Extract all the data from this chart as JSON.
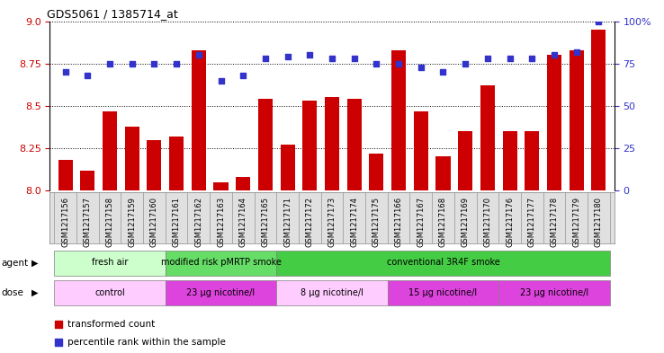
{
  "title": "GDS5061 / 1385714_at",
  "samples": [
    "GSM1217156",
    "GSM1217157",
    "GSM1217158",
    "GSM1217159",
    "GSM1217160",
    "GSM1217161",
    "GSM1217162",
    "GSM1217163",
    "GSM1217164",
    "GSM1217165",
    "GSM1217171",
    "GSM1217172",
    "GSM1217173",
    "GSM1217174",
    "GSM1217175",
    "GSM1217166",
    "GSM1217167",
    "GSM1217168",
    "GSM1217169",
    "GSM1217170",
    "GSM1217176",
    "GSM1217177",
    "GSM1217178",
    "GSM1217179",
    "GSM1217180"
  ],
  "transformed_count": [
    8.18,
    8.12,
    8.47,
    8.38,
    8.3,
    8.32,
    8.83,
    8.05,
    8.08,
    8.54,
    8.27,
    8.53,
    8.55,
    8.54,
    8.22,
    8.83,
    8.47,
    8.2,
    8.35,
    8.62,
    8.35,
    8.35,
    8.8,
    8.83,
    8.95
  ],
  "percentile_rank": [
    70,
    68,
    75,
    75,
    75,
    75,
    80,
    65,
    68,
    78,
    79,
    80,
    78,
    78,
    75,
    75,
    73,
    70,
    75,
    78,
    78,
    78,
    80,
    82,
    100
  ],
  "ylim_left": [
    8.0,
    9.0
  ],
  "ylim_right": [
    0,
    100
  ],
  "yticks_left": [
    8.0,
    8.25,
    8.5,
    8.75,
    9.0
  ],
  "yticks_right": [
    0,
    25,
    50,
    75,
    100
  ],
  "bar_color": "#cc0000",
  "dot_color": "#3333cc",
  "agent_groups": [
    {
      "label": "fresh air",
      "start": 0,
      "end": 4,
      "color": "#ccffcc"
    },
    {
      "label": "modified risk pMRTP smoke",
      "start": 5,
      "end": 9,
      "color": "#66dd66"
    },
    {
      "label": "conventional 3R4F smoke",
      "start": 10,
      "end": 24,
      "color": "#44cc44"
    }
  ],
  "dose_groups": [
    {
      "label": "control",
      "start": 0,
      "end": 4,
      "color": "#ffccff"
    },
    {
      "label": "23 μg nicotine/l",
      "start": 5,
      "end": 9,
      "color": "#dd44dd"
    },
    {
      "label": "8 μg nicotine/l",
      "start": 10,
      "end": 14,
      "color": "#ffccff"
    },
    {
      "label": "15 μg nicotine/l",
      "start": 15,
      "end": 19,
      "color": "#dd44dd"
    },
    {
      "label": "23 μg nicotine/l",
      "start": 20,
      "end": 24,
      "color": "#dd44dd"
    }
  ],
  "legend_bar_label": "transformed count",
  "legend_dot_label": "percentile rank within the sample",
  "xlabel_bg": "#dddddd",
  "fig_width": 7.38,
  "fig_height": 3.93
}
